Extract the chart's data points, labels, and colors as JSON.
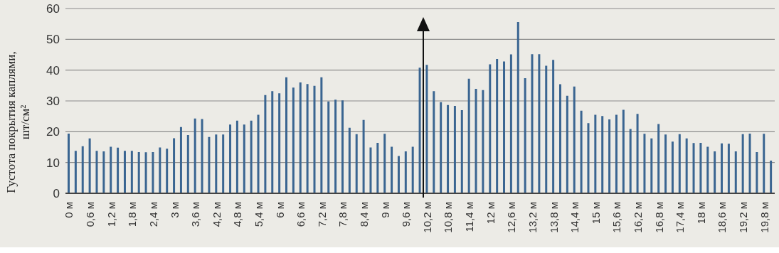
{
  "chart_data": {
    "type": "bar",
    "ylabel": "Густота покрытия каплями, шт/см²",
    "categories": [
      "0 м",
      null,
      null,
      "0,6 м",
      null,
      null,
      "1,2 м",
      null,
      null,
      "1,8 м",
      null,
      null,
      "2,4 м",
      null,
      null,
      "3 м",
      null,
      null,
      "3,6 м",
      null,
      null,
      "4,2 м",
      null,
      null,
      "4,8 м",
      null,
      null,
      "5,4 м",
      null,
      null,
      "6 м",
      null,
      null,
      "6,6 м",
      null,
      null,
      "7,2 м",
      null,
      null,
      "7,8 м",
      null,
      null,
      "8,4 м",
      null,
      null,
      "9 м",
      null,
      null,
      "9,6 м",
      null,
      null,
      "10,2 м",
      null,
      null,
      "10,8 м",
      null,
      null,
      "11,4 м",
      null,
      null,
      "12 м",
      null,
      null,
      "12,6 м",
      null,
      null,
      "13,2 м",
      null,
      null,
      "13,8 м",
      null,
      null,
      "14,4 м",
      null,
      null,
      "15 м",
      null,
      null,
      "15,6 м",
      null,
      null,
      "16,2 м",
      null,
      null,
      "16,8 м",
      null,
      null,
      "17,4 м",
      null,
      null,
      "18 м",
      null,
      null,
      "18,6 м",
      null,
      null,
      "19,2 м",
      null,
      null,
      "19,8 м",
      null
    ],
    "values": [
      19.4,
      13.8,
      15.3,
      17.8,
      13.8,
      13.6,
      15.1,
      14.8,
      13.8,
      13.8,
      13.4,
      13.3,
      13.4,
      14.9,
      14.5,
      17.9,
      21.5,
      18.9,
      24.3,
      24.1,
      18.3,
      19.1,
      19.1,
      22.3,
      23.6,
      22.3,
      23.6,
      25.5,
      31.9,
      33.2,
      32.5,
      37.7,
      34.3,
      36.0,
      35.5,
      34.9,
      37.7,
      29.8,
      30.4,
      30.2,
      21.3,
      19.2,
      23.8,
      14.9,
      16.4,
      19.3,
      15.1,
      12.1,
      13.6,
      15.1,
      40.8,
      41.7,
      33.2,
      29.6,
      28.7,
      28.4,
      27.0,
      37.2,
      33.9,
      33.5,
      41.9,
      43.6,
      42.8,
      45.1,
      55.6,
      37.4,
      45.2,
      45.2,
      41.4,
      43.3,
      35.4,
      31.7,
      34.7,
      26.8,
      22.8,
      25.5,
      25.1,
      24.0,
      25.5,
      27.1,
      20.9,
      25.8,
      19.3,
      17.8,
      22.5,
      19.1,
      16.8,
      19.2,
      17.8,
      16.3,
      16.4,
      15.1,
      13.6,
      16.2,
      16.1,
      13.6,
      19.2,
      19.4,
      13.4,
      19.3,
      10.6
    ],
    "color": "#3a6591",
    "ylim": [
      0,
      60
    ],
    "yticks": [
      0,
      10,
      20,
      30,
      40,
      50,
      60
    ],
    "grid": "y"
  }
}
